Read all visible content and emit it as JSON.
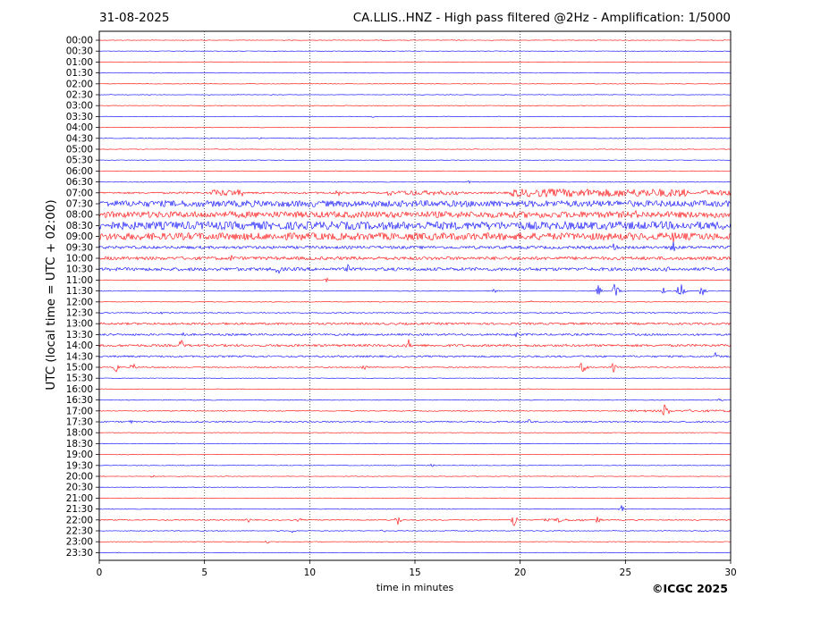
{
  "header": {
    "date": "31-08-2025",
    "title": "CA.LLIS..HNZ - High pass filtered @2Hz - Amplification: 1/5000"
  },
  "copyright": "©ICGC 2025",
  "chart_data": {
    "type": "line",
    "title": "CA.LLIS..HNZ - High pass filtered @2Hz - Amplification: 1/5000",
    "xlabel": "time in minutes",
    "ylabel": "UTC (local time = UTC + 02:00)",
    "xlim": [
      0,
      30
    ],
    "xticks": [
      0,
      5,
      10,
      15,
      20,
      25,
      30
    ],
    "grid": "vertical dotted at every 5 minutes",
    "colors": {
      "even_rows": "#ff0000",
      "odd_rows": "#0000ff"
    },
    "rows": [
      {
        "label": "00:00",
        "color": "#ff0000",
        "noise": 0.3,
        "events": []
      },
      {
        "label": "00:30",
        "color": "#0000ff",
        "noise": 0.3,
        "events": []
      },
      {
        "label": "01:00",
        "color": "#ff0000",
        "noise": 0.3,
        "events": []
      },
      {
        "label": "01:30",
        "color": "#0000ff",
        "noise": 0.3,
        "events": []
      },
      {
        "label": "02:00",
        "color": "#ff0000",
        "noise": 0.3,
        "events": []
      },
      {
        "label": "02:30",
        "color": "#0000ff",
        "noise": 0.3,
        "events": []
      },
      {
        "label": "03:00",
        "color": "#ff0000",
        "noise": 0.3,
        "events": []
      },
      {
        "label": "03:30",
        "color": "#0000ff",
        "noise": 0.3,
        "events": [
          {
            "t": 13,
            "amp": 2
          }
        ]
      },
      {
        "label": "04:00",
        "color": "#ff0000",
        "noise": 0.3,
        "events": []
      },
      {
        "label": "04:30",
        "color": "#0000ff",
        "noise": 0.3,
        "events": [
          {
            "t": 7.6,
            "amp": 2
          }
        ]
      },
      {
        "label": "05:00",
        "color": "#ff0000",
        "noise": 0.3,
        "events": []
      },
      {
        "label": "05:30",
        "color": "#0000ff",
        "noise": 0.3,
        "events": []
      },
      {
        "label": "06:00",
        "color": "#ff0000",
        "noise": 0.3,
        "events": []
      },
      {
        "label": "06:30",
        "color": "#0000ff",
        "noise": 0.4,
        "events": [
          {
            "t": 17.6,
            "amp": 2
          }
        ]
      },
      {
        "label": "07:00",
        "color": "#ff0000",
        "noise": 1.0,
        "bursts": [
          [
            5.3,
            6.8,
            3.5
          ],
          [
            14,
            17,
            2.5
          ],
          [
            19.5,
            28,
            4.5
          ],
          [
            28.5,
            30,
            3
          ]
        ],
        "events": [
          {
            "t": 6,
            "amp": 5
          },
          {
            "t": 11.3,
            "amp": 7
          },
          {
            "t": 13.8,
            "amp": 6
          },
          {
            "t": 14.8,
            "amp": 8
          }
        ]
      },
      {
        "label": "07:30",
        "color": "#0000ff",
        "noise": 3.5,
        "events": [
          {
            "t": 7,
            "amp": 5
          },
          {
            "t": 20.2,
            "amp": 5
          }
        ]
      },
      {
        "label": "08:00",
        "color": "#ff0000",
        "noise": 3.5,
        "events": [
          {
            "t": 15,
            "amp": 5
          },
          {
            "t": 25.5,
            "amp": 5
          }
        ]
      },
      {
        "label": "08:30",
        "color": "#0000ff",
        "noise": 4.5,
        "events": []
      },
      {
        "label": "09:00",
        "color": "#ff0000",
        "noise": 4.0,
        "events": [
          {
            "t": 27.3,
            "amp": 9
          }
        ]
      },
      {
        "label": "09:30",
        "color": "#0000ff",
        "noise": 1.6,
        "events": [
          {
            "t": 24.5,
            "amp": 8
          },
          {
            "t": 27.3,
            "amp": 10
          }
        ]
      },
      {
        "label": "10:00",
        "color": "#ff0000",
        "noise": 1.8,
        "events": [
          {
            "t": 6.3,
            "amp": 5
          }
        ]
      },
      {
        "label": "10:30",
        "color": "#0000ff",
        "noise": 1.8,
        "events": [
          {
            "t": 8.5,
            "amp": 8
          },
          {
            "t": 11.8,
            "amp": 6
          },
          {
            "t": 27,
            "amp": 4
          }
        ]
      },
      {
        "label": "11:00",
        "color": "#ff0000",
        "noise": 0.3,
        "events": [
          {
            "t": 10.8,
            "amp": 3
          }
        ]
      },
      {
        "label": "11:30",
        "color": "#0000ff",
        "noise": 0.4,
        "events": [
          {
            "t": 18.8,
            "amp": 4
          },
          {
            "t": 23.7,
            "amp": 8
          },
          {
            "t": 24.5,
            "amp": 13
          },
          {
            "t": 26.8,
            "amp": 5
          },
          {
            "t": 27.6,
            "amp": 14
          },
          {
            "t": 28.6,
            "amp": 11
          }
        ]
      },
      {
        "label": "12:00",
        "color": "#ff0000",
        "noise": 0.4,
        "events": [
          {
            "t": 20.5,
            "amp": 3
          }
        ]
      },
      {
        "label": "12:30",
        "color": "#0000ff",
        "noise": 0.6,
        "events": [
          {
            "t": 3,
            "amp": 2
          }
        ]
      },
      {
        "label": "13:00",
        "color": "#ff0000",
        "noise": 1.2,
        "events": []
      },
      {
        "label": "13:30",
        "color": "#0000ff",
        "noise": 1.1,
        "events": [
          {
            "t": 4,
            "amp": 4
          },
          {
            "t": 19.8,
            "amp": 4
          }
        ]
      },
      {
        "label": "14:00",
        "color": "#ff0000",
        "noise": 1.3,
        "events": [
          {
            "t": 3.9,
            "amp": 8
          },
          {
            "t": 14.7,
            "amp": 7
          }
        ]
      },
      {
        "label": "14:30",
        "color": "#0000ff",
        "noise": 1.0,
        "events": [
          {
            "t": 29.3,
            "amp": 5
          }
        ]
      },
      {
        "label": "15:00",
        "color": "#ff0000",
        "noise": 0.6,
        "events": [
          {
            "t": 0.8,
            "amp": 6
          },
          {
            "t": 1.6,
            "amp": 6
          },
          {
            "t": 12.6,
            "amp": 4
          },
          {
            "t": 23,
            "amp": 11
          },
          {
            "t": 24.4,
            "amp": 8
          }
        ]
      },
      {
        "label": "15:30",
        "color": "#0000ff",
        "noise": 0.3,
        "events": []
      },
      {
        "label": "16:00",
        "color": "#ff0000",
        "noise": 0.3,
        "events": []
      },
      {
        "label": "16:30",
        "color": "#0000ff",
        "noise": 0.4,
        "events": [
          {
            "t": 29.5,
            "amp": 2
          }
        ]
      },
      {
        "label": "17:00",
        "color": "#ff0000",
        "noise": 0.5,
        "bursts": [
          [
            25,
            30,
            1.2
          ]
        ],
        "events": [
          {
            "t": 26.9,
            "amp": 13
          }
        ]
      },
      {
        "label": "17:30",
        "color": "#0000ff",
        "noise": 0.8,
        "events": [
          {
            "t": 1.5,
            "amp": 3
          },
          {
            "t": 20.4,
            "amp": 6
          }
        ]
      },
      {
        "label": "18:00",
        "color": "#ff0000",
        "noise": 0.3,
        "events": []
      },
      {
        "label": "18:30",
        "color": "#0000ff",
        "noise": 0.3,
        "events": []
      },
      {
        "label": "19:00",
        "color": "#ff0000",
        "noise": 0.3,
        "events": []
      },
      {
        "label": "19:30",
        "color": "#0000ff",
        "noise": 0.3,
        "events": [
          {
            "t": 15.8,
            "amp": 2
          }
        ]
      },
      {
        "label": "20:00",
        "color": "#ff0000",
        "noise": 0.3,
        "events": [
          {
            "t": 2.5,
            "amp": 2
          }
        ]
      },
      {
        "label": "20:30",
        "color": "#0000ff",
        "noise": 0.3,
        "events": []
      },
      {
        "label": "21:00",
        "color": "#ff0000",
        "noise": 0.3,
        "events": []
      },
      {
        "label": "21:30",
        "color": "#0000ff",
        "noise": 0.4,
        "events": [
          {
            "t": 24.8,
            "amp": 5
          }
        ]
      },
      {
        "label": "22:00",
        "color": "#ff0000",
        "noise": 0.6,
        "bursts": [
          [
            21,
            23,
            1.3
          ]
        ],
        "events": [
          {
            "t": 14.2,
            "amp": 8
          },
          {
            "t": 19.7,
            "amp": 11
          },
          {
            "t": 21.9,
            "amp": 6
          },
          {
            "t": 23.7,
            "amp": 5
          },
          {
            "t": 7.1,
            "amp": 3
          },
          {
            "t": 9.5,
            "amp": 3
          }
        ]
      },
      {
        "label": "22:30",
        "color": "#0000ff",
        "noise": 0.4,
        "events": [
          {
            "t": 9.2,
            "amp": 3
          },
          {
            "t": 13.5,
            "amp": 2
          }
        ]
      },
      {
        "label": "23:00",
        "color": "#ff0000",
        "noise": 0.3,
        "events": [
          {
            "t": 8,
            "amp": 2
          }
        ]
      },
      {
        "label": "23:30",
        "color": "#0000ff",
        "noise": 0.3,
        "events": []
      }
    ]
  }
}
